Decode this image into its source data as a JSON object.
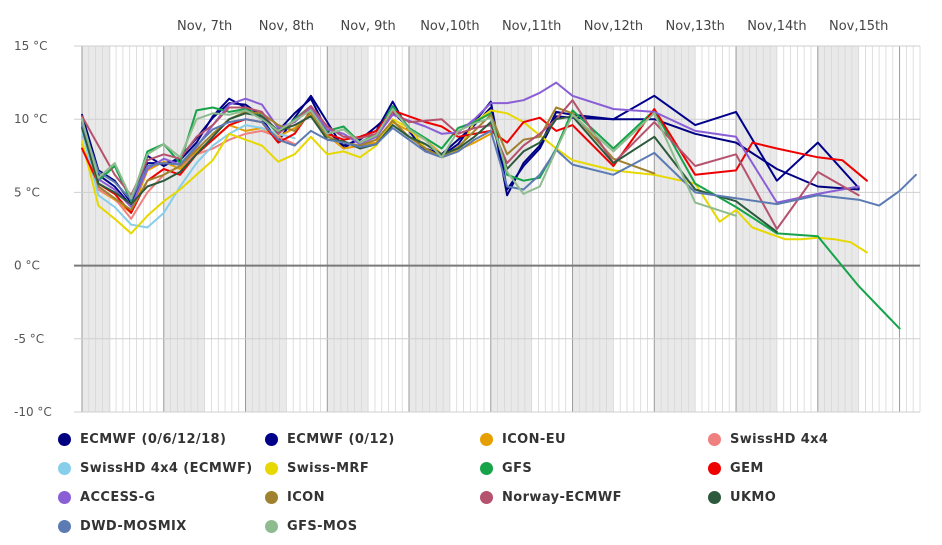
{
  "chart_data": {
    "type": "line",
    "title": "",
    "xlabel": "",
    "ylabel": "",
    "ylim": [
      -10,
      15
    ],
    "y_ticks": [
      15,
      10,
      5,
      0,
      -5,
      -10
    ],
    "y_tick_labels": [
      "15 °C",
      "10 °C",
      "5 °C",
      "0 °C",
      "-5 °C",
      "-10 °C"
    ],
    "x_unit": "days since Nov 6, 00:00",
    "x_range": [
      0,
      10.25
    ],
    "x_ticks": [
      {
        "x": 1.0,
        "label": "Nov, 7th"
      },
      {
        "x": 2.0,
        "label": "Nov, 8th"
      },
      {
        "x": 3.0,
        "label": "Nov, 9th"
      },
      {
        "x": 4.0,
        "label": "Nov,10th"
      },
      {
        "x": 5.0,
        "label": "Nov,11th"
      },
      {
        "x": 6.0,
        "label": "Nov,12th"
      },
      {
        "x": 7.0,
        "label": "Nov,13th"
      },
      {
        "x": 8.0,
        "label": "Nov,14th"
      },
      {
        "x": 9.0,
        "label": "Nov,15th"
      }
    ],
    "night_shading": [
      [
        0.0,
        0.35
      ],
      [
        1.0,
        1.5
      ],
      [
        2.0,
        2.5
      ],
      [
        3.0,
        3.5
      ],
      [
        4.0,
        4.5
      ],
      [
        5.0,
        5.5
      ],
      [
        6.0,
        6.5
      ],
      [
        7.0,
        7.5
      ],
      [
        8.0,
        8.5
      ],
      [
        9.0,
        9.5
      ]
    ],
    "grid": true,
    "legend_position": "bottom",
    "series": [
      {
        "name": "ECMWF (0/6/12/18)",
        "color": "#000080",
        "x": [
          0,
          0.2,
          0.4,
          0.6,
          0.8,
          1.0,
          1.2,
          1.4,
          1.6,
          1.8,
          2.0,
          2.2,
          2.4,
          2.6,
          2.8,
          3.0,
          3.2,
          3.4,
          3.6,
          3.8,
          4.0,
          4.2,
          4.4,
          4.6,
          4.8,
          5.0,
          5.2,
          5.4,
          5.6,
          5.8,
          6.0,
          6.5,
          7.0,
          7.5,
          8.0,
          8.5,
          9.0,
          9.5
        ],
        "y": [
          10.3,
          6.5,
          5.8,
          4.3,
          7.5,
          6.8,
          7.4,
          8.7,
          10.1,
          11.1,
          11.0,
          10.2,
          9.2,
          10.4,
          11.4,
          9.2,
          8.2,
          8.6,
          9.5,
          10.5,
          9.4,
          8.0,
          7.6,
          8.6,
          9.6,
          10.8,
          4.8,
          7.0,
          8.2,
          10.5,
          10.3,
          10.0,
          10.0,
          9.0,
          8.4,
          6.6,
          5.4,
          5.2
        ]
      },
      {
        "name": "ECMWF (0/12)",
        "color": "#00008b",
        "x": [
          0,
          0.2,
          0.4,
          0.6,
          0.8,
          1.0,
          1.2,
          1.4,
          1.6,
          1.8,
          2.0,
          2.2,
          2.4,
          2.6,
          2.8,
          3.0,
          3.2,
          3.4,
          3.6,
          3.8,
          4.0,
          4.2,
          4.4,
          4.6,
          4.8,
          5.0,
          5.2,
          5.4,
          5.6,
          5.8,
          6.0,
          6.5,
          7.0,
          7.5,
          8.0,
          8.5,
          9.0,
          9.5
        ],
        "y": [
          10.0,
          6.2,
          5.4,
          4.1,
          7.0,
          7.0,
          7.2,
          8.4,
          10.2,
          11.4,
          10.8,
          10.0,
          8.5,
          10.1,
          11.6,
          9.8,
          8.0,
          8.8,
          9.2,
          11.2,
          9.2,
          7.8,
          7.5,
          8.3,
          9.8,
          11.2,
          5.2,
          6.8,
          8.0,
          10.2,
          10.1,
          10.0,
          11.6,
          9.6,
          10.5,
          5.8,
          8.4,
          5.3
        ]
      },
      {
        "name": "ICON-EU",
        "color": "#e69f00",
        "x": [
          0,
          0.2,
          0.4,
          0.6,
          0.8,
          1.0,
          1.2,
          1.4,
          1.6,
          1.8,
          2.0,
          2.2,
          2.4,
          2.6,
          2.8,
          3.0,
          3.2,
          3.4,
          3.6,
          3.8,
          4.0,
          4.2,
          4.4,
          4.6,
          4.8,
          5.0
        ],
        "y": [
          8.3,
          5.2,
          4.5,
          3.6,
          6.5,
          7.1,
          6.6,
          7.8,
          8.6,
          9.6,
          9.2,
          9.4,
          8.8,
          9.4,
          10.3,
          8.9,
          8.0,
          8.2,
          8.4,
          9.8,
          9.2,
          8.6,
          7.6,
          7.9,
          8.4,
          9.0
        ]
      },
      {
        "name": "SwissHD 4x4",
        "color": "#f08080",
        "x": [
          0,
          0.2,
          0.4,
          0.6,
          0.8,
          1.0,
          1.2,
          1.4,
          1.6,
          1.8,
          2.0,
          2.2,
          2.4,
          2.6
        ],
        "y": [
          9.8,
          5.2,
          4.6,
          3.2,
          5.0,
          6.2,
          6.8,
          7.6,
          8.0,
          8.6,
          9.0,
          9.2,
          8.8,
          8.3
        ]
      },
      {
        "name": "SwissHD 4x4 (ECMWF)",
        "color": "#87ceeb",
        "x": [
          0,
          0.2,
          0.4,
          0.6,
          0.8,
          1.0,
          1.2,
          1.4,
          1.6,
          1.8,
          2.0,
          2.2,
          2.4,
          2.6
        ],
        "y": [
          9.2,
          4.8,
          4.0,
          2.8,
          2.6,
          3.6,
          5.4,
          7.0,
          8.2,
          9.0,
          9.6,
          9.4,
          9.0,
          8.7
        ]
      },
      {
        "name": "Swiss-MRF",
        "color": "#e6d800",
        "x": [
          0,
          0.2,
          0.4,
          0.6,
          0.8,
          1.0,
          1.2,
          1.4,
          1.6,
          1.8,
          2.0,
          2.2,
          2.4,
          2.6,
          2.8,
          3.0,
          3.2,
          3.4,
          3.6,
          3.8,
          4.0,
          4.2,
          4.4,
          4.6,
          4.8,
          5.0,
          5.2,
          5.4,
          5.6,
          5.8,
          6.0,
          6.5,
          7.0,
          7.5,
          7.8,
          8.0,
          8.2,
          8.4,
          8.6,
          8.8,
          9.0,
          9.2,
          9.4,
          9.6
        ],
        "y": [
          8.5,
          4.1,
          3.2,
          2.2,
          3.4,
          4.4,
          5.2,
          6.2,
          7.2,
          9.0,
          8.6,
          8.2,
          7.1,
          7.6,
          8.8,
          7.6,
          7.8,
          7.4,
          8.2,
          10.0,
          9.4,
          8.0,
          7.4,
          7.8,
          9.8,
          10.6,
          10.4,
          9.8,
          8.9,
          8.0,
          7.2,
          6.5,
          6.2,
          5.6,
          3.0,
          3.8,
          2.6,
          2.2,
          1.8,
          1.8,
          1.9,
          1.8,
          1.6,
          0.9
        ]
      },
      {
        "name": "GFS",
        "color": "#16a34a",
        "x": [
          0,
          0.2,
          0.4,
          0.6,
          0.8,
          1.0,
          1.2,
          1.4,
          1.6,
          1.8,
          2.0,
          2.2,
          2.4,
          2.6,
          2.8,
          3.0,
          3.2,
          3.4,
          3.6,
          3.8,
          4.0,
          4.2,
          4.4,
          4.6,
          4.8,
          5.0,
          5.2,
          5.4,
          5.6,
          5.8,
          6.0,
          6.5,
          7.0,
          7.5,
          8.0,
          8.5,
          9.0,
          9.5,
          10.0
        ],
        "y": [
          9.8,
          5.8,
          6.8,
          4.4,
          7.8,
          8.3,
          7.0,
          10.6,
          10.8,
          10.5,
          10.7,
          10.2,
          9.0,
          10.0,
          10.9,
          9.2,
          9.5,
          8.4,
          9.0,
          10.9,
          9.4,
          8.7,
          8.0,
          9.4,
          9.8,
          10.4,
          6.2,
          5.8,
          6.0,
          8.0,
          10.6,
          8.0,
          10.6,
          5.6,
          4.0,
          2.2,
          2.0,
          -1.4,
          -4.3
        ]
      },
      {
        "name": "GEM",
        "color": "#ee0000",
        "x": [
          0,
          0.2,
          0.4,
          0.6,
          0.8,
          1.0,
          1.2,
          1.4,
          1.6,
          1.8,
          2.0,
          2.2,
          2.4,
          2.6,
          2.8,
          3.0,
          3.2,
          3.4,
          3.6,
          3.8,
          4.0,
          4.2,
          4.4,
          4.6,
          4.8,
          5.0,
          5.2,
          5.4,
          5.6,
          5.8,
          6.0,
          6.5,
          7.0,
          7.5,
          8.0,
          8.2,
          8.5,
          9.0,
          9.3,
          9.6
        ],
        "y": [
          8.0,
          5.6,
          4.9,
          3.6,
          5.8,
          6.6,
          6.2,
          7.6,
          8.6,
          9.6,
          10.0,
          9.8,
          8.4,
          9.0,
          10.6,
          9.0,
          8.6,
          8.8,
          9.2,
          10.6,
          10.2,
          9.8,
          9.5,
          8.8,
          9.0,
          9.2,
          8.4,
          9.8,
          10.1,
          9.2,
          9.6,
          6.8,
          10.7,
          6.2,
          6.5,
          8.4,
          8.0,
          7.4,
          7.2,
          5.8
        ]
      },
      {
        "name": "ACCESS-G",
        "color": "#8a5fd6",
        "x": [
          0,
          0.2,
          0.4,
          0.6,
          0.8,
          1.0,
          1.2,
          1.4,
          1.6,
          1.8,
          2.0,
          2.2,
          2.4,
          2.6,
          2.8,
          3.0,
          3.2,
          3.4,
          3.6,
          3.8,
          4.0,
          4.2,
          4.4,
          4.6,
          4.8,
          5.0,
          5.2,
          5.4,
          5.6,
          5.8,
          6.0,
          6.5,
          7.0,
          7.5,
          8.0,
          8.5,
          9.0,
          9.5
        ],
        "y": [
          9.5,
          5.9,
          5.2,
          4.0,
          6.6,
          7.3,
          6.9,
          8.1,
          9.6,
          11.0,
          11.4,
          11.0,
          9.4,
          9.8,
          10.8,
          9.3,
          9.0,
          8.3,
          8.8,
          10.3,
          9.9,
          9.5,
          9.0,
          9.1,
          10.0,
          11.1,
          11.1,
          11.3,
          11.8,
          12.5,
          11.6,
          10.7,
          10.5,
          9.2,
          8.8,
          4.3,
          4.9,
          5.4
        ]
      },
      {
        "name": "ICON",
        "color": "#a0822e",
        "x": [
          0,
          0.2,
          0.4,
          0.6,
          0.8,
          1.0,
          1.2,
          1.4,
          1.6,
          1.8,
          2.0,
          2.2,
          2.4,
          2.6,
          2.8,
          3.0,
          3.2,
          3.4,
          3.6,
          3.8,
          4.0,
          4.2,
          4.4,
          4.6,
          4.8,
          5.0,
          5.2,
          5.4,
          5.6,
          5.8,
          6.0,
          6.5,
          7.0
        ],
        "y": [
          9.6,
          5.4,
          4.6,
          3.8,
          5.8,
          6.2,
          6.8,
          7.9,
          9.0,
          10.0,
          10.5,
          10.4,
          9.6,
          9.2,
          10.5,
          8.8,
          8.4,
          8.2,
          8.6,
          9.9,
          8.8,
          8.0,
          7.4,
          8.1,
          9.2,
          10.3,
          7.6,
          8.6,
          8.8,
          10.8,
          10.4,
          7.3,
          6.3
        ]
      },
      {
        "name": "Norway-ECMWF",
        "color": "#b5536e",
        "x": [
          0,
          0.2,
          0.4,
          0.6,
          0.8,
          1.0,
          1.2,
          1.4,
          1.6,
          1.8,
          2.0,
          2.2,
          2.4,
          2.6,
          2.8,
          3.0,
          3.2,
          3.4,
          3.6,
          3.8,
          4.0,
          4.2,
          4.4,
          4.6,
          4.8,
          5.0,
          5.2,
          5.4,
          5.6,
          5.8,
          6.0,
          6.5,
          7.0,
          7.5,
          8.0,
          8.5,
          9.0,
          9.5
        ],
        "y": [
          10.2,
          8.2,
          6.2,
          4.8,
          7.2,
          7.6,
          7.3,
          8.8,
          9.6,
          10.8,
          10.8,
          10.5,
          9.0,
          9.9,
          10.9,
          9.5,
          8.8,
          8.7,
          9.0,
          10.5,
          9.8,
          9.9,
          10.0,
          9.0,
          9.4,
          9.6,
          7.0,
          8.2,
          9.0,
          10.0,
          11.3,
          7.0,
          9.8,
          6.8,
          7.6,
          2.5,
          6.4,
          4.8
        ]
      },
      {
        "name": "UKMO",
        "color": "#2d5a3d",
        "x": [
          0,
          0.2,
          0.4,
          0.6,
          0.8,
          1.0,
          1.2,
          1.4,
          1.6,
          1.8,
          2.0,
          2.2,
          2.4,
          2.6,
          2.8,
          3.0,
          3.2,
          3.4,
          3.6,
          3.8,
          4.0,
          4.2,
          4.4,
          4.6,
          4.8,
          5.0,
          5.2,
          5.4,
          5.6,
          5.8,
          6.0,
          6.5,
          7.0,
          7.5,
          8.0,
          8.5
        ],
        "y": [
          9.4,
          5.6,
          5.0,
          4.2,
          5.4,
          5.8,
          6.4,
          7.6,
          8.8,
          10.0,
          10.4,
          10.2,
          9.2,
          9.6,
          10.2,
          8.6,
          8.5,
          8.0,
          8.3,
          9.6,
          8.8,
          8.3,
          7.6,
          8.0,
          8.8,
          9.8,
          6.6,
          7.8,
          8.4,
          10.0,
          10.2,
          7.0,
          8.8,
          5.2,
          4.4,
          2.3
        ]
      },
      {
        "name": "DWD-MOSMIX",
        "color": "#5b7bb2",
        "x": [
          0,
          0.2,
          0.4,
          0.6,
          0.8,
          1.0,
          1.2,
          1.4,
          1.6,
          1.8,
          2.0,
          2.2,
          2.4,
          2.6,
          2.8,
          3.0,
          3.2,
          3.4,
          3.6,
          3.8,
          4.0,
          4.2,
          4.4,
          4.6,
          4.8,
          5.0,
          5.2,
          5.4,
          5.6,
          5.8,
          6.0,
          6.5,
          7.0,
          7.5,
          8.0,
          8.5,
          9.0,
          9.5,
          9.75,
          10.0,
          10.2
        ],
        "y": [
          9.7,
          6.4,
          5.7,
          4.5,
          6.8,
          7.0,
          6.9,
          8.2,
          9.3,
          9.8,
          10.0,
          9.8,
          8.6,
          8.2,
          9.2,
          8.6,
          8.4,
          8.1,
          8.3,
          9.4,
          8.6,
          7.8,
          7.4,
          7.8,
          8.6,
          9.2,
          5.4,
          5.2,
          6.2,
          7.9,
          6.9,
          6.2,
          7.7,
          5.0,
          4.6,
          4.2,
          4.8,
          4.5,
          4.1,
          5.1,
          6.2
        ]
      },
      {
        "name": "GFS-MOS",
        "color": "#8fbc8f",
        "x": [
          0,
          0.2,
          0.4,
          0.6,
          0.8,
          1.0,
          1.2,
          1.4,
          1.6,
          1.8,
          2.0,
          2.2,
          2.4,
          2.6,
          2.8,
          3.0,
          3.2,
          3.4,
          3.6,
          3.8,
          4.0,
          4.2,
          4.4,
          4.6,
          4.8,
          5.0,
          5.2,
          5.4,
          5.6,
          5.8,
          6.0,
          6.5,
          7.0,
          7.5,
          8.0
        ],
        "y": [
          10.0,
          6.0,
          7.0,
          4.6,
          7.6,
          8.3,
          7.4,
          10.0,
          10.4,
          10.3,
          10.6,
          10.0,
          9.2,
          9.9,
          10.6,
          9.0,
          9.3,
          8.4,
          8.9,
          10.7,
          9.3,
          8.6,
          7.4,
          9.2,
          9.7,
          10.1,
          6.4,
          4.9,
          5.4,
          7.9,
          10.3,
          7.8,
          10.4,
          4.3,
          3.4
        ]
      }
    ]
  },
  "legend": {
    "items": [
      {
        "label": "ECMWF (0/6/12/18)",
        "color": "#000080"
      },
      {
        "label": "ECMWF (0/12)",
        "color": "#00008b"
      },
      {
        "label": "ICON-EU",
        "color": "#e69f00"
      },
      {
        "label": "SwissHD 4x4",
        "color": "#f08080"
      },
      {
        "label": "SwissHD 4x4 (ECMWF)",
        "color": "#87ceeb"
      },
      {
        "label": "Swiss-MRF",
        "color": "#e6d800"
      },
      {
        "label": "GFS",
        "color": "#16a34a"
      },
      {
        "label": "GEM",
        "color": "#ee0000"
      },
      {
        "label": "ACCESS-G",
        "color": "#8a5fd6"
      },
      {
        "label": "ICON",
        "color": "#a0822e"
      },
      {
        "label": "Norway-ECMWF",
        "color": "#b5536e"
      },
      {
        "label": "UKMO",
        "color": "#2d5a3d"
      },
      {
        "label": "DWD-MOSMIX",
        "color": "#5b7bb2"
      },
      {
        "label": "GFS-MOS",
        "color": "#8fbc8f"
      }
    ]
  }
}
